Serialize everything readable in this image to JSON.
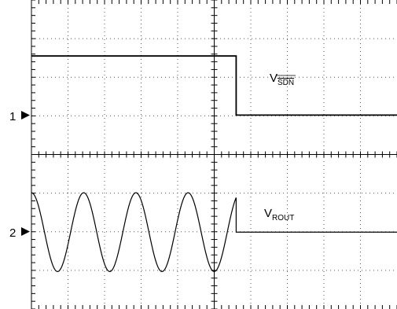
{
  "chart_data": {
    "type": "line",
    "title": "",
    "xlabel": "",
    "ylabel": "",
    "grid": true,
    "x_divisions": 10,
    "y_divisions": 8,
    "xlim": [
      0,
      10
    ],
    "ylim": [
      -4,
      4
    ],
    "channels": [
      {
        "marker": "1",
        "ground_div": 1
      },
      {
        "marker": "2",
        "ground_div": -2
      }
    ],
    "series": [
      {
        "name": "V",
        "name_overline_sub": "SDN",
        "points": [
          [
            0,
            2.55
          ],
          [
            5.6,
            2.55
          ],
          [
            5.6,
            1.02
          ],
          [
            10,
            1.02
          ]
        ]
      },
      {
        "name": "V",
        "name_sub": "ROUT",
        "waveform": "sine",
        "periods_per_div": 0.7,
        "amplitude_div": 1.02,
        "center_div": -2.01,
        "stop_x": 5.6,
        "after_level_div": -2.01
      }
    ],
    "annotations": [
      {
        "series": 0,
        "x": 6.4,
        "y": 1.95
      },
      {
        "series": 1,
        "x": 6.4,
        "y": -1.45
      }
    ]
  }
}
